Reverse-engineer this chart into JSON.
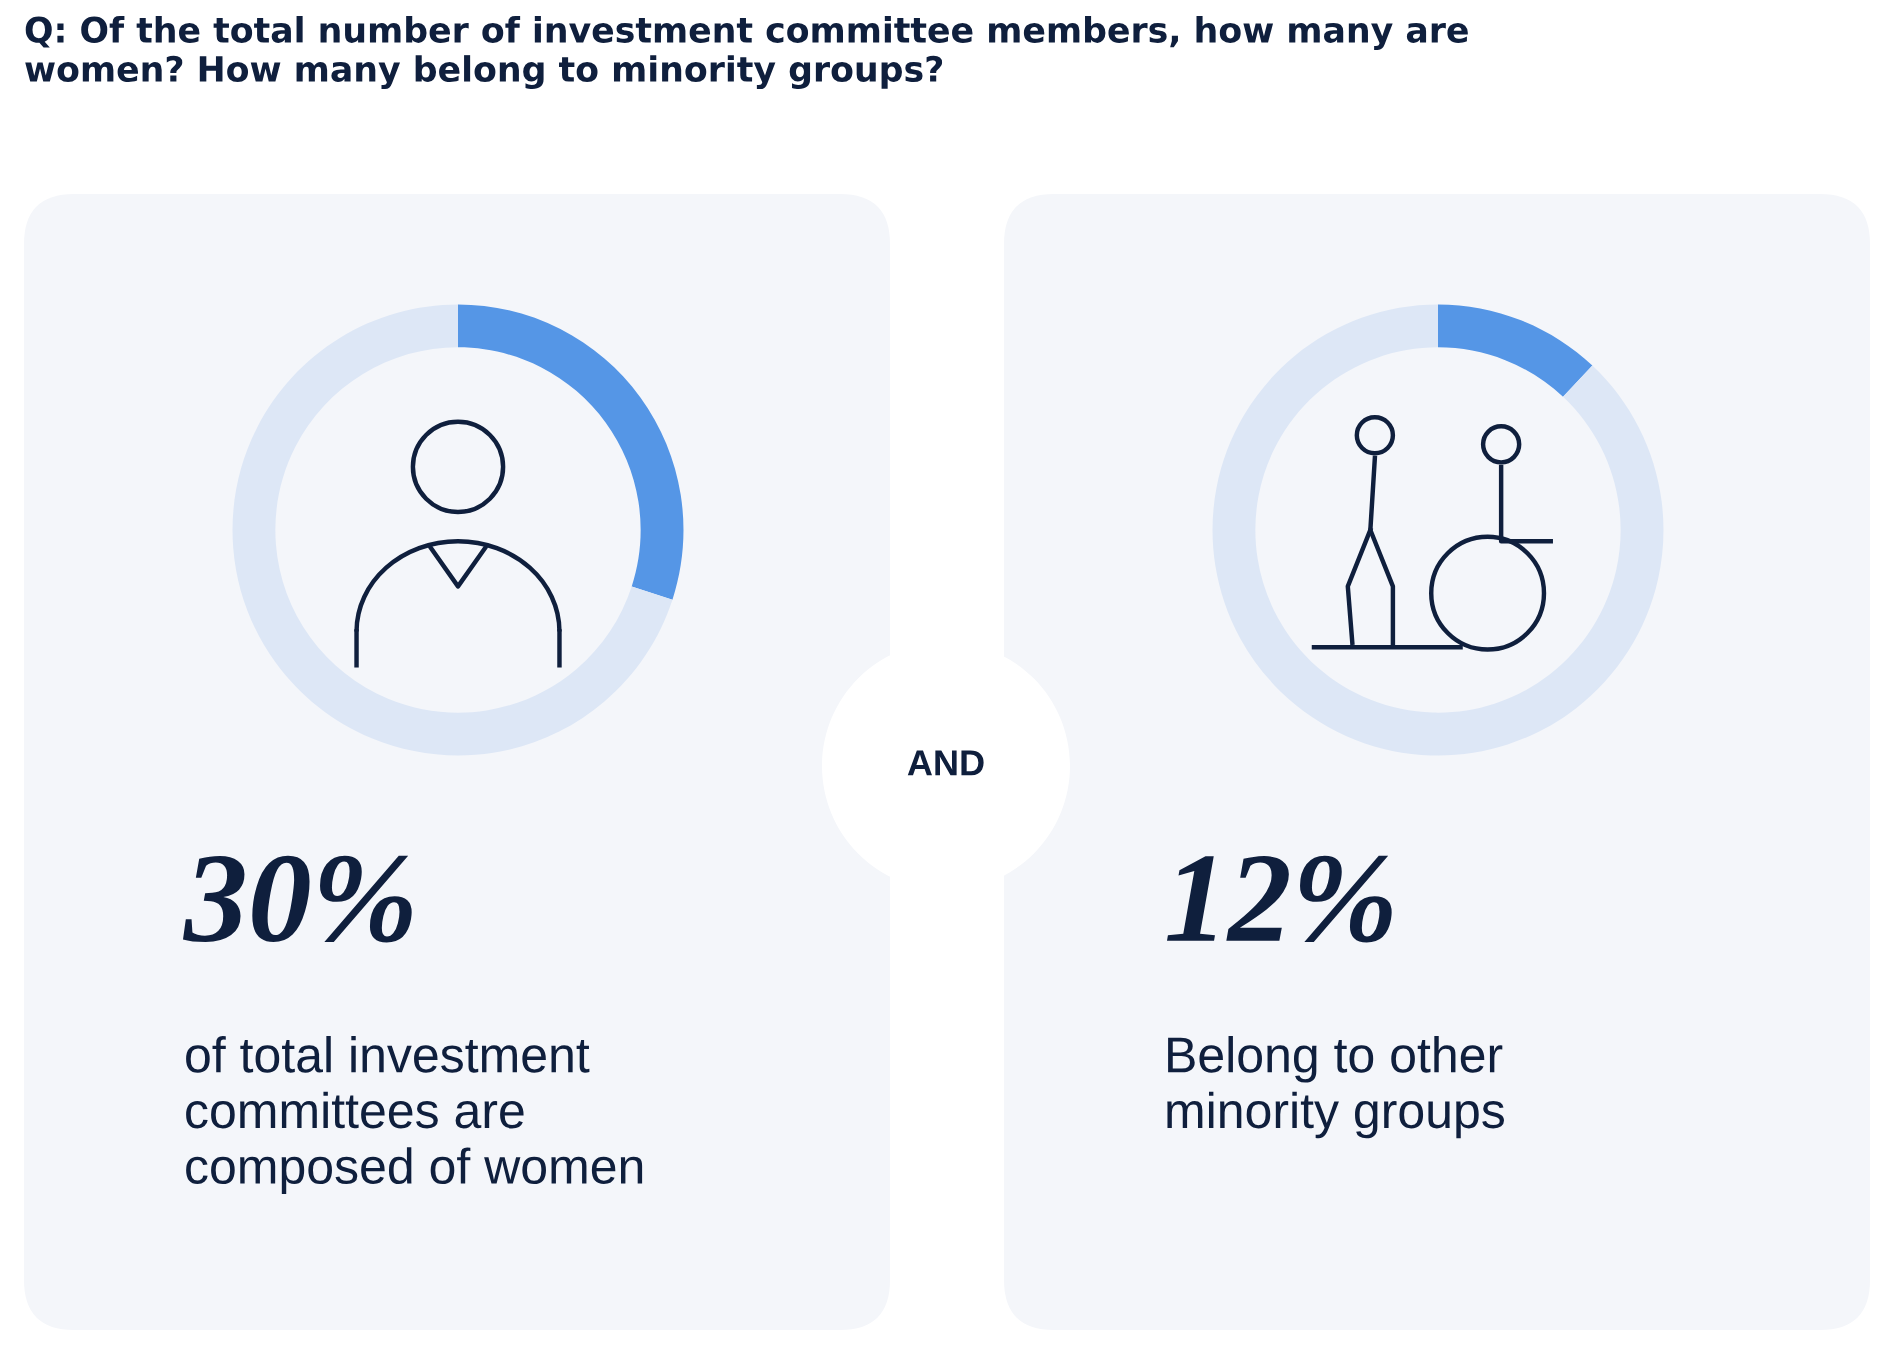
{
  "chart_data": [
    {
      "type": "other",
      "title": "Q: Of the total number of investment committee members, how many are\nwomen? How many belong to minority groups?",
      "annotations": [
        "AND"
      ]
    },
    {
      "type": "donut",
      "categories": [
        null,
        null
      ],
      "values": [
        30,
        70
      ],
      "colors": [
        "#5596e6",
        "#dde7f6"
      ],
      "annotations": [
        "30%",
        "of total investment\ncommittees are\ncomposed of women"
      ]
    },
    {
      "type": "donut",
      "categories": [
        null,
        null
      ],
      "values": [
        12,
        88
      ],
      "colors": [
        "#5596e6",
        "#dde7f6"
      ],
      "annotations": [
        "12%",
        "Belong to other\nminority groups"
      ]
    }
  ]
}
